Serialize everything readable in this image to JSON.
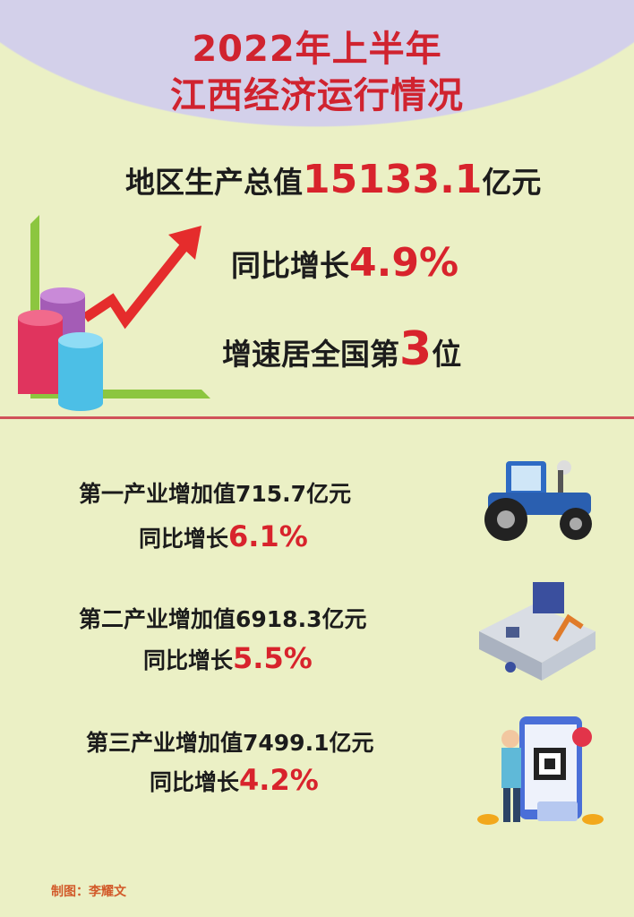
{
  "header": {
    "title_line1": "2022年上半年",
    "title_line2": "江西经济运行情况"
  },
  "headline": {
    "gdp_label": "地区生产总值",
    "gdp_value": "15133.1",
    "gdp_unit": "亿元",
    "growth_label": "同比增长",
    "growth_value": "4.9%",
    "rank_label": "增速居全国第",
    "rank_value": "3",
    "rank_unit": "位"
  },
  "industries": [
    {
      "label": "第一产业增加值715.7亿元",
      "growth_label": "同比增长",
      "growth_value": "6.1%",
      "icon": "tractor-icon"
    },
    {
      "label": "第二产业增加值6918.3亿元",
      "growth_label": "同比增长",
      "growth_value": "5.5%",
      "icon": "factory-icon"
    },
    {
      "label": "第三产业增加值7499.1亿元",
      "growth_label": "同比增长",
      "growth_value": "4.2%",
      "icon": "mobile-payment-icon"
    }
  ],
  "footer": {
    "credit": "制图：李耀文"
  },
  "colors": {
    "accent": "#d8232c",
    "background": "#ebf0c5",
    "header_bg": "#d3d0ea"
  }
}
